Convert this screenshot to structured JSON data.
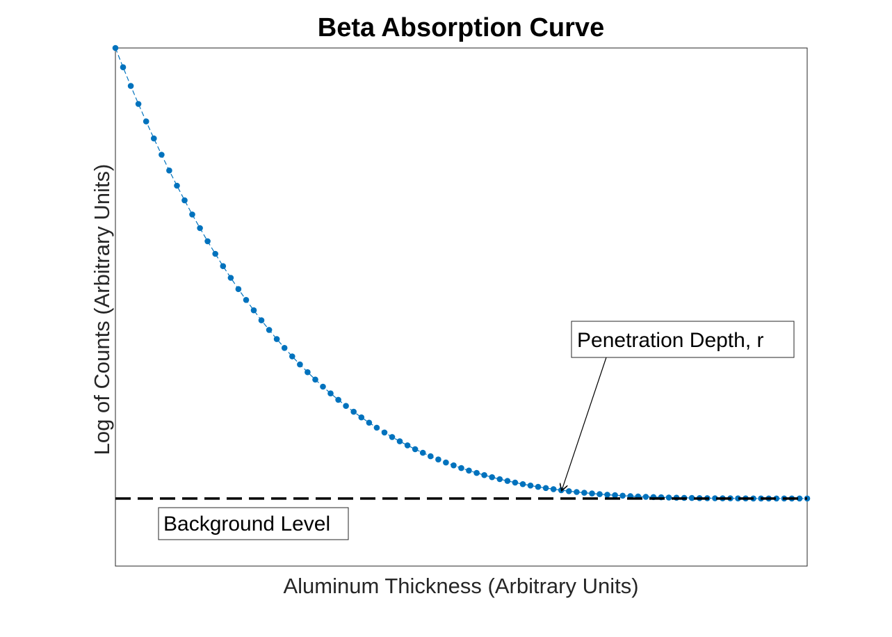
{
  "chart_data": {
    "type": "line",
    "title": "Beta Absorption Curve",
    "xlabel": "Aluminum Thickness (Arbitrary Units)",
    "ylabel": "Log of Counts (Arbitrary Units)",
    "xlim": [
      0,
      1
    ],
    "ylim": [
      -0.15,
      1
    ],
    "grid": false,
    "ticks_shown": false,
    "series": [
      {
        "marker": "filled-circle",
        "line_style": "dashed",
        "color": "#0072BD",
        "x": [
          0.0,
          0.0111,
          0.0222,
          0.0333,
          0.0444,
          0.0556,
          0.0667,
          0.0778,
          0.0889,
          0.1,
          0.1111,
          0.1222,
          0.1333,
          0.1444,
          0.1556,
          0.1667,
          0.1778,
          0.1889,
          0.2,
          0.2111,
          0.2222,
          0.2333,
          0.2444,
          0.2556,
          0.2667,
          0.2778,
          0.2889,
          0.3,
          0.3111,
          0.3222,
          0.3333,
          0.3444,
          0.3556,
          0.3667,
          0.3778,
          0.3889,
          0.4,
          0.4111,
          0.4222,
          0.4333,
          0.4444,
          0.4556,
          0.4667,
          0.4778,
          0.4889,
          0.5,
          0.5111,
          0.5222,
          0.5333,
          0.5444,
          0.5556,
          0.5667,
          0.5778,
          0.5889,
          0.6,
          0.6111,
          0.6222,
          0.6333,
          0.6444,
          0.6556,
          0.6667,
          0.6778,
          0.6889,
          0.7,
          0.7111,
          0.7222,
          0.7333,
          0.7444,
          0.7556,
          0.7667,
          0.7778,
          0.7889,
          0.8,
          0.8111,
          0.8222,
          0.8333,
          0.8444,
          0.8556,
          0.8667,
          0.8778,
          0.8889,
          0.9,
          0.9111,
          0.9222,
          0.9333,
          0.9444,
          0.9556,
          0.9667,
          0.9778,
          0.9889,
          1.0
        ]
      }
    ],
    "reference_line": {
      "y": 0.0,
      "style": "dashed",
      "color": "#000000"
    },
    "annotations": [
      {
        "text": "Background Level",
        "anchor": "lower-left"
      },
      {
        "text": "Penetration Depth, r",
        "arrow_target_x": 0.645,
        "arrow_target_y": 0.008
      }
    ]
  }
}
